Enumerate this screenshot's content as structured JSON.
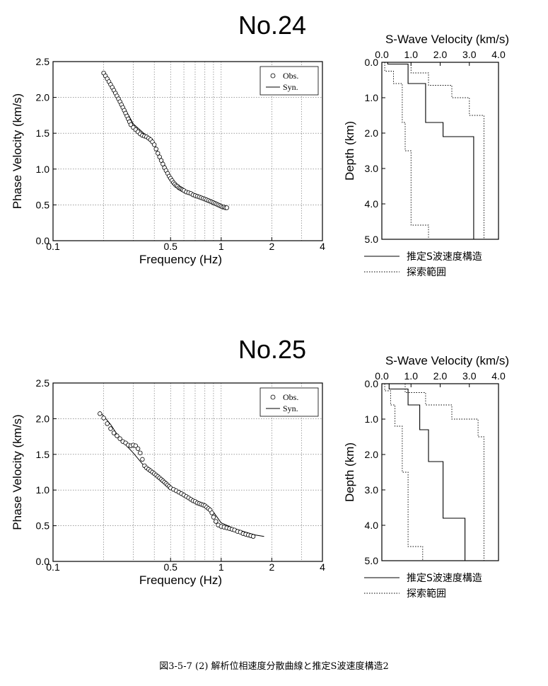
{
  "figure_caption": "図3-5-7 (2)  解析位相速度分散曲線と推定S波速度構造2",
  "chart_data": [
    {
      "station": "No.24",
      "dispersion": {
        "type": "scatter",
        "xlabel": "Frequency (Hz)",
        "ylabel": "Phase Velocity (km/s)",
        "xscale": "log",
        "xlim": [
          0.1,
          4
        ],
        "ylim": [
          0,
          2.5
        ],
        "xticks": [
          0.1,
          0.5,
          1,
          2,
          4
        ],
        "xtick_labels": [
          "0.1",
          "0.5",
          "1",
          "2",
          "4"
        ],
        "yticks": [
          0,
          0.5,
          1.0,
          1.5,
          2.0,
          2.5
        ],
        "ytick_labels": [
          "0.0",
          "0.5",
          "1.0",
          "1.5",
          "2.0",
          "2.5"
        ],
        "grid": true,
        "legend": {
          "position": "top-right",
          "entries": [
            "Obs.",
            "Syn."
          ]
        },
        "series": [
          {
            "name": "Obs.",
            "marker": "open-circle",
            "x": [
              0.2,
              0.205,
              0.21,
              0.215,
              0.22,
              0.225,
              0.23,
              0.235,
              0.24,
              0.245,
              0.25,
              0.255,
              0.26,
              0.265,
              0.27,
              0.275,
              0.28,
              0.285,
              0.29,
              0.3,
              0.31,
              0.32,
              0.33,
              0.34,
              0.35,
              0.36,
              0.37,
              0.38,
              0.39,
              0.4,
              0.41,
              0.42,
              0.43,
              0.44,
              0.45,
              0.46,
              0.47,
              0.48,
              0.49,
              0.5,
              0.51,
              0.52,
              0.53,
              0.54,
              0.55,
              0.56,
              0.57,
              0.58,
              0.59,
              0.6,
              0.62,
              0.64,
              0.66,
              0.68,
              0.7,
              0.72,
              0.74,
              0.76,
              0.78,
              0.8,
              0.82,
              0.84,
              0.86,
              0.88,
              0.9,
              0.92,
              0.94,
              0.96,
              0.98,
              1.0,
              1.02,
              1.04,
              1.06,
              1.08
            ],
            "y": [
              2.34,
              2.3,
              2.26,
              2.22,
              2.18,
              2.14,
              2.1,
              2.06,
              2.02,
              1.98,
              1.94,
              1.9,
              1.86,
              1.82,
              1.78,
              1.74,
              1.7,
              1.66,
              1.62,
              1.58,
              1.55,
              1.52,
              1.49,
              1.47,
              1.46,
              1.45,
              1.43,
              1.41,
              1.38,
              1.34,
              1.28,
              1.22,
              1.17,
              1.12,
              1.07,
              1.02,
              0.98,
              0.94,
              0.9,
              0.87,
              0.84,
              0.81,
              0.79,
              0.77,
              0.76,
              0.74,
              0.73,
              0.72,
              0.71,
              0.7,
              0.68,
              0.67,
              0.66,
              0.64,
              0.63,
              0.62,
              0.61,
              0.6,
              0.59,
              0.58,
              0.57,
              0.56,
              0.55,
              0.54,
              0.53,
              0.52,
              0.51,
              0.5,
              0.49,
              0.48,
              0.47,
              0.47,
              0.46,
              0.46
            ]
          },
          {
            "name": "Syn.",
            "marker": "line",
            "x": [
              0.2,
              0.25,
              0.3,
              0.35,
              0.4,
              0.45,
              0.5,
              0.55,
              0.6,
              0.7,
              0.8,
              0.9,
              1.0,
              1.08
            ],
            "y": [
              2.34,
              1.97,
              1.63,
              1.49,
              1.34,
              1.11,
              0.89,
              0.78,
              0.71,
              0.64,
              0.58,
              0.53,
              0.48,
              0.46
            ]
          }
        ]
      },
      "velocity_profile": {
        "type": "line",
        "title": "S-Wave Velocity (km/s)",
        "ylabel": "Depth (km)",
        "xlim": [
          0,
          4.0
        ],
        "ylim": [
          5.0,
          0
        ],
        "xticks": [
          0,
          1,
          2,
          3,
          4
        ],
        "xtick_labels": [
          "0.0",
          "1.0",
          "2.0",
          "3.0",
          "4.0"
        ],
        "yticks": [
          0,
          1,
          2,
          3,
          4,
          5
        ],
        "ytick_labels": [
          "0.0",
          "1.0",
          "2.0",
          "3.0",
          "4.0",
          "5.0"
        ],
        "legend": {
          "position": "bottom",
          "entries": [
            "推定S波速度構造",
            "探索範囲"
          ]
        },
        "series": [
          {
            "name": "推定S波速度構造",
            "style": "solid",
            "layers": [
              {
                "vs": 0.2,
                "top": 0,
                "bottom": 0.05
              },
              {
                "vs": 0.9,
                "top": 0.05,
                "bottom": 0.6
              },
              {
                "vs": 1.5,
                "top": 0.6,
                "bottom": 1.7
              },
              {
                "vs": 2.1,
                "top": 1.7,
                "bottom": 2.1
              },
              {
                "vs": 3.15,
                "top": 2.1,
                "bottom": 5.0
              }
            ]
          },
          {
            "name": "探索範囲 (min)",
            "style": "dotted",
            "layers": [
              {
                "vs": 0.1,
                "top": 0,
                "bottom": 0.25
              },
              {
                "vs": 0.4,
                "top": 0.25,
                "bottom": 0.6
              },
              {
                "vs": 0.7,
                "top": 0.6,
                "bottom": 1.7
              },
              {
                "vs": 0.8,
                "top": 1.7,
                "bottom": 2.5
              },
              {
                "vs": 1.0,
                "top": 2.5,
                "bottom": 4.6
              },
              {
                "vs": 1.6,
                "top": 4.6,
                "bottom": 5.0
              }
            ]
          },
          {
            "name": "探索範囲 (max)",
            "style": "dotted",
            "layers": [
              {
                "vs": 1.0,
                "top": 0,
                "bottom": 0.3
              },
              {
                "vs": 1.6,
                "top": 0.3,
                "bottom": 0.65
              },
              {
                "vs": 2.4,
                "top": 0.65,
                "bottom": 1.0
              },
              {
                "vs": 3.0,
                "top": 1.0,
                "bottom": 1.5
              },
              {
                "vs": 3.5,
                "top": 1.5,
                "bottom": 5.0
              }
            ]
          }
        ]
      }
    },
    {
      "station": "No.25",
      "dispersion": {
        "type": "scatter",
        "xlabel": "Frequency (Hz)",
        "ylabel": "Phase Velocity (km/s)",
        "xscale": "log",
        "xlim": [
          0.1,
          4
        ],
        "ylim": [
          0,
          2.5
        ],
        "xticks": [
          0.1,
          0.5,
          1,
          2,
          4
        ],
        "xtick_labels": [
          "0.1",
          "0.5",
          "1",
          "2",
          "4"
        ],
        "yticks": [
          0,
          0.5,
          1.0,
          1.5,
          2.0,
          2.5
        ],
        "ytick_labels": [
          "0.0",
          "0.5",
          "1.0",
          "1.5",
          "2.0",
          "2.5"
        ],
        "grid": true,
        "legend": {
          "position": "top-right",
          "entries": [
            "Obs.",
            "Syn."
          ]
        },
        "series": [
          {
            "name": "Obs.",
            "marker": "open-circle",
            "x": [
              0.19,
              0.2,
              0.21,
              0.22,
              0.23,
              0.24,
              0.25,
              0.26,
              0.27,
              0.28,
              0.29,
              0.3,
              0.31,
              0.32,
              0.33,
              0.34,
              0.35,
              0.36,
              0.37,
              0.38,
              0.39,
              0.4,
              0.41,
              0.42,
              0.43,
              0.44,
              0.45,
              0.46,
              0.47,
              0.48,
              0.49,
              0.5,
              0.52,
              0.54,
              0.56,
              0.58,
              0.6,
              0.62,
              0.64,
              0.66,
              0.68,
              0.7,
              0.72,
              0.74,
              0.76,
              0.78,
              0.8,
              0.82,
              0.84,
              0.86,
              0.88,
              0.9,
              0.93,
              0.96,
              1.0,
              1.04,
              1.08,
              1.12,
              1.16,
              1.2,
              1.25,
              1.3,
              1.35,
              1.4,
              1.45,
              1.5,
              1.55
            ],
            "y": [
              2.07,
              2.01,
              1.93,
              1.86,
              1.8,
              1.76,
              1.72,
              1.68,
              1.66,
              1.63,
              1.62,
              1.63,
              1.62,
              1.58,
              1.52,
              1.43,
              1.34,
              1.31,
              1.29,
              1.27,
              1.25,
              1.23,
              1.21,
              1.19,
              1.17,
              1.15,
              1.13,
              1.11,
              1.09,
              1.07,
              1.05,
              1.03,
              1.01,
              0.99,
              0.97,
              0.95,
              0.93,
              0.91,
              0.89,
              0.87,
              0.85,
              0.84,
              0.82,
              0.81,
              0.8,
              0.79,
              0.78,
              0.76,
              0.74,
              0.72,
              0.68,
              0.62,
              0.56,
              0.51,
              0.49,
              0.48,
              0.47,
              0.46,
              0.45,
              0.44,
              0.42,
              0.41,
              0.39,
              0.38,
              0.37,
              0.36,
              0.35
            ]
          },
          {
            "name": "Syn.",
            "marker": "line",
            "x": [
              0.19,
              0.22,
              0.25,
              0.3,
              0.35,
              0.4,
              0.5,
              0.6,
              0.7,
              0.8,
              0.9,
              1.0,
              1.2,
              1.4,
              1.6,
              1.8
            ],
            "y": [
              2.1,
              1.92,
              1.72,
              1.52,
              1.33,
              1.22,
              1.02,
              0.92,
              0.84,
              0.78,
              0.69,
              0.54,
              0.46,
              0.41,
              0.37,
              0.35
            ]
          }
        ]
      },
      "velocity_profile": {
        "type": "line",
        "title": "S-Wave Velocity (km/s)",
        "ylabel": "Depth (km)",
        "xlim": [
          0,
          4.0
        ],
        "ylim": [
          5.0,
          0
        ],
        "xticks": [
          0,
          1,
          2,
          3,
          4
        ],
        "xtick_labels": [
          "0.0",
          "1.0",
          "2.0",
          "3.0",
          "4.0"
        ],
        "yticks": [
          0,
          1,
          2,
          3,
          4,
          5
        ],
        "ytick_labels": [
          "0.0",
          "1.0",
          "2.0",
          "3.0",
          "4.0",
          "5.0"
        ],
        "legend": {
          "position": "bottom",
          "entries": [
            "推定S波速度構造",
            "探索範囲"
          ]
        },
        "series": [
          {
            "name": "推定S波速度構造",
            "style": "solid",
            "layers": [
              {
                "vs": 0.25,
                "top": 0,
                "bottom": 0.15
              },
              {
                "vs": 0.9,
                "top": 0.15,
                "bottom": 0.6
              },
              {
                "vs": 1.3,
                "top": 0.6,
                "bottom": 1.3
              },
              {
                "vs": 1.6,
                "top": 1.3,
                "bottom": 2.2
              },
              {
                "vs": 2.1,
                "top": 2.2,
                "bottom": 3.8
              },
              {
                "vs": 2.85,
                "top": 3.8,
                "bottom": 5.0
              }
            ]
          },
          {
            "name": "探索範囲 (min)",
            "style": "dotted",
            "layers": [
              {
                "vs": 0.1,
                "top": 0,
                "bottom": 0.2
              },
              {
                "vs": 0.3,
                "top": 0.2,
                "bottom": 0.6
              },
              {
                "vs": 0.45,
                "top": 0.6,
                "bottom": 1.2
              },
              {
                "vs": 0.7,
                "top": 1.2,
                "bottom": 2.5
              },
              {
                "vs": 0.9,
                "top": 2.5,
                "bottom": 4.6
              },
              {
                "vs": 1.4,
                "top": 4.6,
                "bottom": 5.0
              }
            ]
          },
          {
            "name": "探索範囲 (max)",
            "style": "dotted",
            "layers": [
              {
                "vs": 0.8,
                "top": 0,
                "bottom": 0.25
              },
              {
                "vs": 1.5,
                "top": 0.25,
                "bottom": 0.6
              },
              {
                "vs": 2.4,
                "top": 0.6,
                "bottom": 1.0
              },
              {
                "vs": 3.3,
                "top": 1.0,
                "bottom": 1.5
              },
              {
                "vs": 3.5,
                "top": 1.5,
                "bottom": 5.0
              }
            ]
          }
        ]
      }
    }
  ]
}
